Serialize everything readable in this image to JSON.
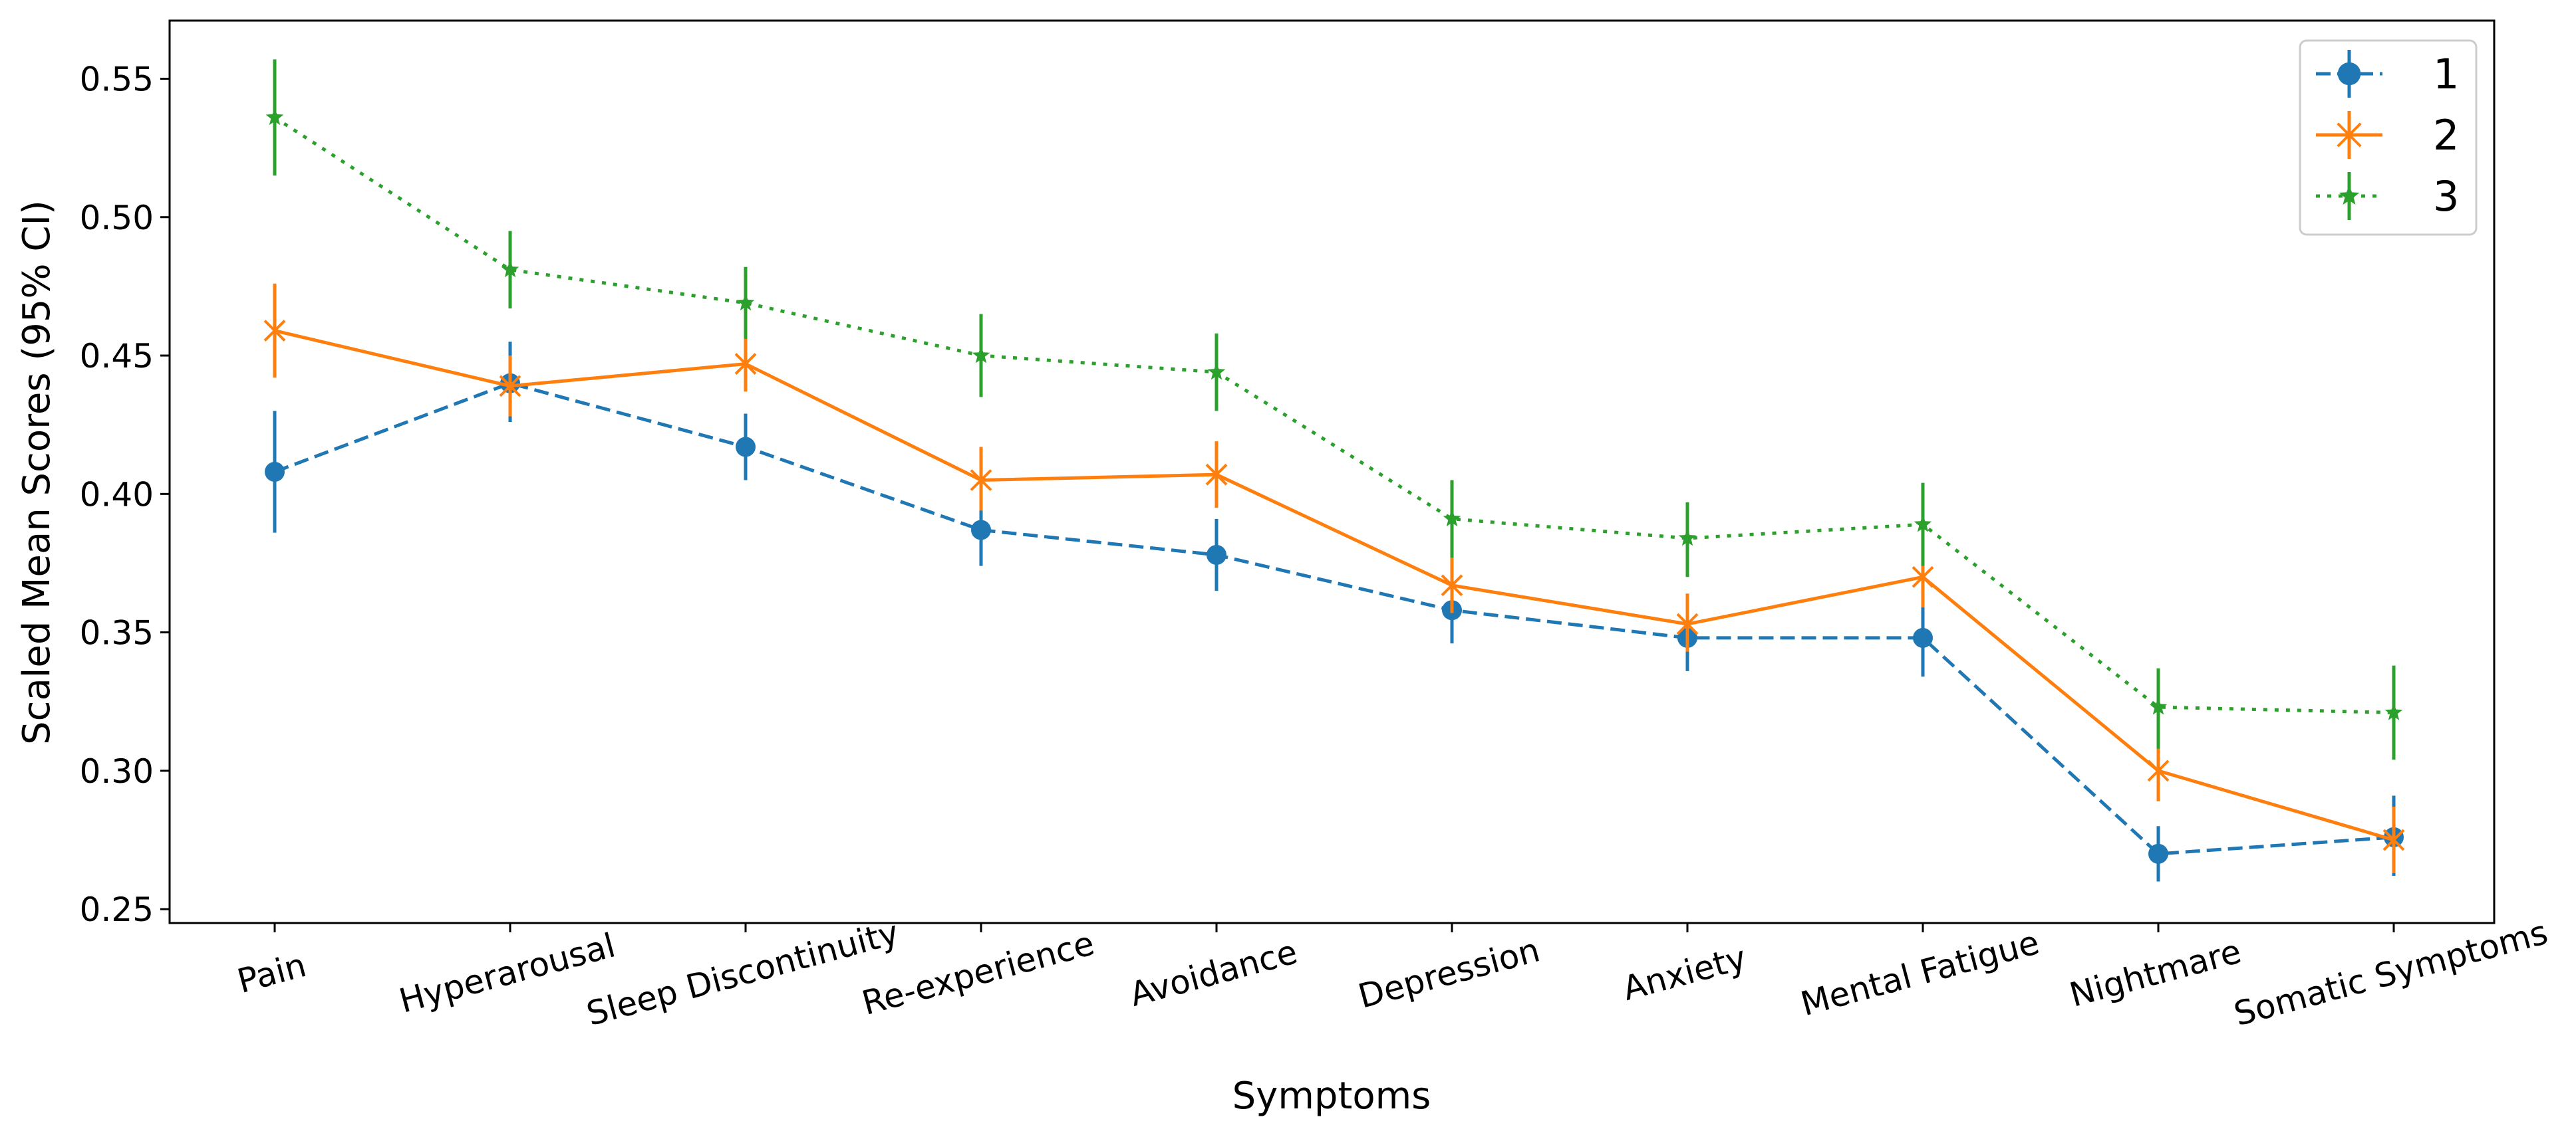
{
  "chart_data": {
    "type": "line",
    "title": "",
    "xlabel": "Symptoms",
    "ylabel": "Scaled Mean Scores (95% CI)",
    "ylim": [
      0.245,
      0.571
    ],
    "yticks": [
      0.25,
      0.3,
      0.35,
      0.4,
      0.45,
      0.5,
      0.55
    ],
    "ytick_labels": [
      "0.25",
      "0.30",
      "0.35",
      "0.40",
      "0.45",
      "0.50",
      "0.55"
    ],
    "categories": [
      "Pain",
      "Hyperarousal",
      "Sleep Discontinuity",
      "Re-experience",
      "Avoidance",
      "Depression",
      "Anxiety",
      "Mental Fatigue",
      "Nightmare",
      "Somatic Symptoms"
    ],
    "legend_position": "top-right",
    "grid": false,
    "series": [
      {
        "name": "1",
        "color": "#1f77b4",
        "linestyle": "dashed",
        "marker": "circle",
        "values": [
          0.408,
          0.44,
          0.417,
          0.387,
          0.378,
          0.358,
          0.348,
          0.348,
          0.27,
          0.276
        ],
        "ci_low": [
          0.386,
          0.426,
          0.405,
          0.374,
          0.365,
          0.346,
          0.336,
          0.334,
          0.26,
          0.262
        ],
        "ci_high": [
          0.43,
          0.455,
          0.429,
          0.4,
          0.391,
          0.37,
          0.36,
          0.362,
          0.28,
          0.291
        ]
      },
      {
        "name": "2",
        "color": "#ff7f0e",
        "linestyle": "solid",
        "marker": "x",
        "values": [
          0.459,
          0.439,
          0.447,
          0.405,
          0.407,
          0.367,
          0.353,
          0.37,
          0.3,
          0.275
        ],
        "ci_low": [
          0.442,
          0.428,
          0.437,
          0.394,
          0.395,
          0.357,
          0.343,
          0.359,
          0.289,
          0.263
        ],
        "ci_high": [
          0.476,
          0.45,
          0.458,
          0.417,
          0.419,
          0.378,
          0.364,
          0.382,
          0.311,
          0.287
        ]
      },
      {
        "name": "3",
        "color": "#2ca02c",
        "linestyle": "dotted",
        "marker": "star",
        "values": [
          0.536,
          0.481,
          0.469,
          0.45,
          0.444,
          0.391,
          0.384,
          0.389,
          0.323,
          0.321
        ],
        "ci_low": [
          0.515,
          0.467,
          0.456,
          0.435,
          0.43,
          0.377,
          0.37,
          0.374,
          0.308,
          0.304
        ],
        "ci_high": [
          0.557,
          0.495,
          0.482,
          0.465,
          0.458,
          0.405,
          0.397,
          0.404,
          0.337,
          0.338
        ]
      }
    ]
  }
}
